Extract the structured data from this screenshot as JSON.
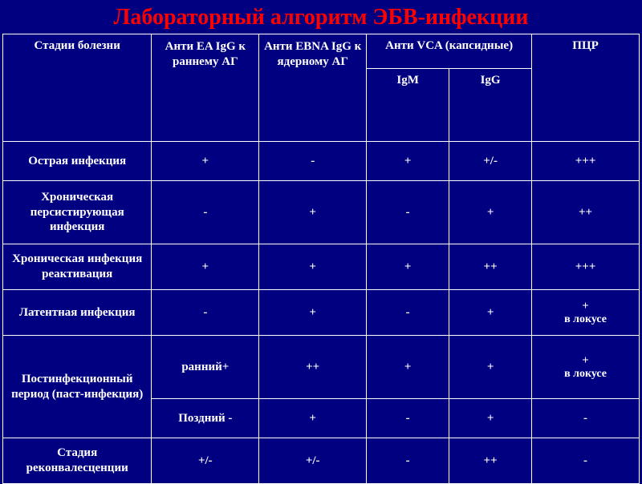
{
  "title": "Лабораторный алгоритм ЭБВ-инфекции",
  "headers": {
    "stage": "Стадии болезни",
    "ea": "Анти EA IgG к раннему АГ",
    "ebna": "Анти EBNA IgG к ядерному АГ",
    "vca": "Анти VCA (капсидные)",
    "igm": "IgM",
    "igg": "IgG",
    "pcr": "ПЦР"
  },
  "rows": [
    {
      "stage": "Острая инфекция",
      "ea": "+",
      "ebna": "-",
      "igm": "+",
      "igg": "+/-",
      "pcr": "+++"
    },
    {
      "stage": "Хроническая персистирующая инфекция",
      "ea": "-",
      "ebna": "+",
      "igm": "-",
      "igg": "+",
      "pcr": "++"
    },
    {
      "stage": "Хроническая инфекция реактивация",
      "ea": "+",
      "ebna": "+",
      "igm": "+",
      "igg": "++",
      "pcr": "+++"
    },
    {
      "stage": "Латентная инфекция",
      "ea": "-",
      "ebna": "+",
      "igm": "-",
      "igg": "+",
      "pcr": "+",
      "pcr_note": "в локусе"
    },
    {
      "stage": "Постинфекционный период (паст-инфекция)",
      "ea": "ранний+",
      "ebna": "++",
      "igm": "+",
      "igg": "+",
      "pcr": "+",
      "pcr_note": "в локусе"
    },
    {
      "stage": "",
      "ea": "Поздний -",
      "ebna": "+",
      "igm": "-",
      "igg": "+",
      "pcr": "-"
    },
    {
      "stage": "Стадия реконвалесценции",
      "ea": "+/-",
      "ebna": "+/-",
      "igm": "-",
      "igg": "++",
      "pcr": "-"
    }
  ]
}
